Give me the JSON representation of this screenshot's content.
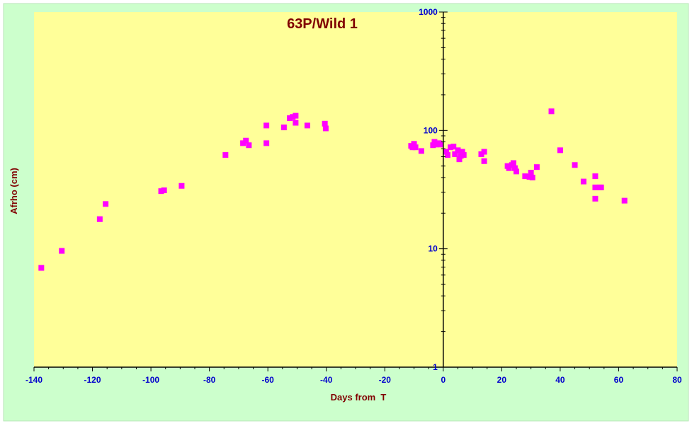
{
  "chart_data": {
    "type": "scatter",
    "title": "63P/Wild 1",
    "xlabel": "Days from  T",
    "ylabel": "Afrho (cm)",
    "xlim": [
      -140,
      80
    ],
    "ylim": [
      1,
      1000
    ],
    "y_scale": "log",
    "x_ticks": [
      -140,
      -120,
      -100,
      -80,
      -60,
      -40,
      -20,
      0,
      20,
      40,
      60,
      80
    ],
    "x_tick_labels": [
      "-140",
      "-120",
      "-100",
      "-80",
      "-60",
      "-40",
      "-20",
      "0",
      "20",
      "40",
      "60",
      "80"
    ],
    "y_ticks": [
      1,
      10,
      100,
      1000
    ],
    "y_tick_labels": [
      "1",
      "10",
      "100",
      "1000"
    ],
    "grid": false,
    "colors": {
      "outer_background": "#ccffcc",
      "plot_background": "#ffff99",
      "marker": "#ff00ff",
      "axis_line": "#000000",
      "tick_label": "#0000cc",
      "title": "#800000"
    },
    "series": [
      {
        "marker": "square",
        "points": [
          [
            -137.5,
            6.9
          ],
          [
            -130.5,
            9.6
          ],
          [
            -117.5,
            17.8
          ],
          [
            -115.5,
            23.9
          ],
          [
            -96.5,
            30.7
          ],
          [
            -95.5,
            31.2
          ],
          [
            -89.5,
            34.0
          ],
          [
            -74.5,
            62.0
          ],
          [
            -68.5,
            78.0
          ],
          [
            -67.5,
            82.0
          ],
          [
            -66.5,
            75.0
          ],
          [
            -60.5,
            78.0
          ],
          [
            -60.5,
            110.0
          ],
          [
            -54.5,
            106.0
          ],
          [
            -52.5,
            127.0
          ],
          [
            -51.5,
            130.0
          ],
          [
            -50.5,
            133.0
          ],
          [
            -50.5,
            116.0
          ],
          [
            -46.5,
            110.0
          ],
          [
            -40.5,
            114.0
          ],
          [
            -40.2,
            104.0
          ],
          [
            -11.0,
            74.0
          ],
          [
            -10.5,
            72.0
          ],
          [
            -10.0,
            77.0
          ],
          [
            -9.5,
            72.0
          ],
          [
            -7.5,
            67.0
          ],
          [
            -3.5,
            75.0
          ],
          [
            -3.0,
            80.0
          ],
          [
            -2.5,
            76.0
          ],
          [
            -1.5,
            78.0
          ],
          [
            -1.0,
            76.0
          ],
          [
            1.0,
            66.0
          ],
          [
            1.5,
            62.0
          ],
          [
            2.5,
            72.0
          ],
          [
            3.5,
            73.0
          ],
          [
            4.0,
            63.0
          ],
          [
            5.0,
            68.0
          ],
          [
            5.5,
            57.0
          ],
          [
            6.0,
            61.0
          ],
          [
            6.5,
            66.0
          ],
          [
            7.0,
            62.0
          ],
          [
            13.0,
            63.0
          ],
          [
            14.0,
            66.0
          ],
          [
            14.0,
            55.0
          ],
          [
            22.0,
            50.0
          ],
          [
            22.5,
            48.0
          ],
          [
            23.5,
            51.0
          ],
          [
            24.0,
            53.0
          ],
          [
            24.5,
            48.0
          ],
          [
            25.0,
            45.0
          ],
          [
            28.0,
            41.0
          ],
          [
            29.5,
            40.5
          ],
          [
            30.0,
            44.0
          ],
          [
            30.5,
            40.0
          ],
          [
            32.0,
            49.0
          ],
          [
            37.0,
            145.0
          ],
          [
            40.0,
            68.0
          ],
          [
            45.0,
            51.0
          ],
          [
            48.0,
            37.0
          ],
          [
            52.0,
            41.0
          ],
          [
            52.0,
            33.0
          ],
          [
            52.0,
            26.5
          ],
          [
            53.5,
            33.0
          ],
          [
            54.0,
            33.0
          ],
          [
            62.0,
            25.5
          ]
        ]
      }
    ]
  }
}
